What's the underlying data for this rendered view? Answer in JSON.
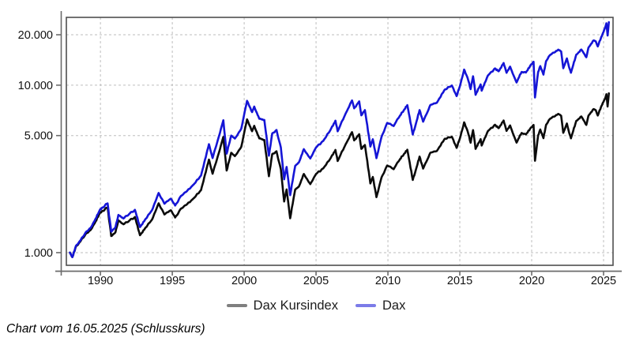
{
  "page": {
    "background": "#ffffff"
  },
  "caption": {
    "text": "Chart vom 16.05.2025 (Schlusskurs)"
  },
  "chart_data": {
    "type": "line",
    "title": "",
    "xlabel": "",
    "ylabel": "",
    "grid": true,
    "grid_color": "#bdbdbd",
    "border_color": "#4f4f4f",
    "axis_color": "#6b6b6b",
    "tick_text_color": "#111111",
    "legend_position": "bottom-center",
    "x_axis": {
      "scale": "linear",
      "range": [
        1987.63,
        2025.66
      ],
      "ticks": [
        {
          "v": 1990,
          "label": "1990"
        },
        {
          "v": 1995,
          "label": "1995"
        },
        {
          "v": 2000,
          "label": "2000"
        },
        {
          "v": 2005,
          "label": "2005"
        },
        {
          "v": 2010,
          "label": "2010"
        },
        {
          "v": 2015,
          "label": "2015"
        },
        {
          "v": 2020,
          "label": "2020"
        },
        {
          "v": 2025,
          "label": "2025"
        }
      ]
    },
    "y_axis": {
      "scale": "log",
      "range": [
        840,
        25400
      ],
      "ticks": [
        {
          "v": 1000,
          "label": "1.000"
        },
        {
          "v": 5000,
          "label": "5.000"
        },
        {
          "v": 10000,
          "label": "10.000"
        },
        {
          "v": 20000,
          "label": "20.000"
        }
      ]
    },
    "series": [
      {
        "name": "Dax Kursindex",
        "color": "#0b0b0b",
        "legend_color": "#7f7f7f",
        "points": [
          [
            1987.88,
            1000
          ],
          [
            1988.05,
            940
          ],
          [
            1988.3,
            1090
          ],
          [
            1988.6,
            1165
          ],
          [
            1989.0,
            1300
          ],
          [
            1989.3,
            1360
          ],
          [
            1989.6,
            1495
          ],
          [
            1989.95,
            1715
          ],
          [
            1990.1,
            1765
          ],
          [
            1990.5,
            1860
          ],
          [
            1990.75,
            1255
          ],
          [
            1991.05,
            1325
          ],
          [
            1991.25,
            1560
          ],
          [
            1991.6,
            1475
          ],
          [
            1992.0,
            1550
          ],
          [
            1992.4,
            1630
          ],
          [
            1992.75,
            1270
          ],
          [
            1993.1,
            1395
          ],
          [
            1993.6,
            1580
          ],
          [
            1994.05,
            1970
          ],
          [
            1994.45,
            1690
          ],
          [
            1994.9,
            1790
          ],
          [
            1995.2,
            1620
          ],
          [
            1995.6,
            1830
          ],
          [
            1996.0,
            1935
          ],
          [
            1996.5,
            2115
          ],
          [
            1997.0,
            2365
          ],
          [
            1997.55,
            3595
          ],
          [
            1997.8,
            2960
          ],
          [
            1998.1,
            3590
          ],
          [
            1998.55,
            4910
          ],
          [
            1998.78,
            3090
          ],
          [
            1999.1,
            3945
          ],
          [
            1999.35,
            3770
          ],
          [
            1999.8,
            4285
          ],
          [
            2000.2,
            6245
          ],
          [
            2000.55,
            5310
          ],
          [
            2000.7,
            5720
          ],
          [
            2001.05,
            4810
          ],
          [
            2001.4,
            4705
          ],
          [
            2001.72,
            2860
          ],
          [
            2001.95,
            3875
          ],
          [
            2002.25,
            4030
          ],
          [
            2002.55,
            3150
          ],
          [
            2002.78,
            2020
          ],
          [
            2002.95,
            2385
          ],
          [
            2003.2,
            1605
          ],
          [
            2003.55,
            2385
          ],
          [
            2003.8,
            2475
          ],
          [
            2004.15,
            2950
          ],
          [
            2004.6,
            2565
          ],
          [
            2005.0,
            2950
          ],
          [
            2005.5,
            3185
          ],
          [
            2006.0,
            3650
          ],
          [
            2006.35,
            4105
          ],
          [
            2006.5,
            3525
          ],
          [
            2007.0,
            4330
          ],
          [
            2007.5,
            5240
          ],
          [
            2007.65,
            4680
          ],
          [
            2008.0,
            5095
          ],
          [
            2008.15,
            4160
          ],
          [
            2008.4,
            4395
          ],
          [
            2008.78,
            2590
          ],
          [
            2008.95,
            2830
          ],
          [
            2009.2,
            2145
          ],
          [
            2009.55,
            2805
          ],
          [
            2009.95,
            3315
          ],
          [
            2010.4,
            3150
          ],
          [
            2010.85,
            3625
          ],
          [
            2011.1,
            3865
          ],
          [
            2011.35,
            4115
          ],
          [
            2011.73,
            2715
          ],
          [
            2011.95,
            3135
          ],
          [
            2012.2,
            3745
          ],
          [
            2012.45,
            3175
          ],
          [
            2012.95,
            3945
          ],
          [
            2013.4,
            4040
          ],
          [
            2013.95,
            4780
          ],
          [
            2014.45,
            4920
          ],
          [
            2014.78,
            4220
          ],
          [
            2015.0,
            4780
          ],
          [
            2015.3,
            6000
          ],
          [
            2015.55,
            5295
          ],
          [
            2015.75,
            4535
          ],
          [
            2015.92,
            5390
          ],
          [
            2016.1,
            4160
          ],
          [
            2016.45,
            4760
          ],
          [
            2016.52,
            4360
          ],
          [
            2016.95,
            5310
          ],
          [
            2017.45,
            5800
          ],
          [
            2017.7,
            5540
          ],
          [
            2018.05,
            6150
          ],
          [
            2018.25,
            5330
          ],
          [
            2018.5,
            5745
          ],
          [
            2018.95,
            4540
          ],
          [
            2019.3,
            5180
          ],
          [
            2019.6,
            5075
          ],
          [
            2019.95,
            5580
          ],
          [
            2020.13,
            5785
          ],
          [
            2020.23,
            3535
          ],
          [
            2020.45,
            5020
          ],
          [
            2020.6,
            5435
          ],
          [
            2020.82,
            4825
          ],
          [
            2021.0,
            5790
          ],
          [
            2021.3,
            6320
          ],
          [
            2021.6,
            6510
          ],
          [
            2021.85,
            6740
          ],
          [
            2022.05,
            6565
          ],
          [
            2022.2,
            5195
          ],
          [
            2022.45,
            5905
          ],
          [
            2022.6,
            5225
          ],
          [
            2022.73,
            4815
          ],
          [
            2023.1,
            6115
          ],
          [
            2023.45,
            6505
          ],
          [
            2023.8,
            5790
          ],
          [
            2023.95,
            6580
          ],
          [
            2024.3,
            7195
          ],
          [
            2024.45,
            7100
          ],
          [
            2024.6,
            6590
          ],
          [
            2024.95,
            7845
          ],
          [
            2025.1,
            8270
          ],
          [
            2025.2,
            8835
          ],
          [
            2025.28,
            7455
          ],
          [
            2025.37,
            8940
          ]
        ]
      },
      {
        "name": "Dax",
        "color": "#1515d6",
        "legend_color": "#7b7be8",
        "points": [
          [
            1987.88,
            1000
          ],
          [
            1988.05,
            940
          ],
          [
            1988.3,
            1100
          ],
          [
            1988.6,
            1180
          ],
          [
            1989.0,
            1330
          ],
          [
            1989.3,
            1400
          ],
          [
            1989.6,
            1550
          ],
          [
            1989.95,
            1790
          ],
          [
            1990.1,
            1850
          ],
          [
            1990.5,
            1968
          ],
          [
            1990.75,
            1335
          ],
          [
            1991.05,
            1420
          ],
          [
            1991.25,
            1680
          ],
          [
            1991.6,
            1600
          ],
          [
            1992.0,
            1700
          ],
          [
            1992.4,
            1800
          ],
          [
            1992.75,
            1420
          ],
          [
            1993.1,
            1570
          ],
          [
            1993.6,
            1800
          ],
          [
            1994.05,
            2270
          ],
          [
            1994.45,
            1960
          ],
          [
            1994.9,
            2100
          ],
          [
            1995.2,
            1910
          ],
          [
            1995.6,
            2180
          ],
          [
            1996.0,
            2320
          ],
          [
            1996.5,
            2560
          ],
          [
            1997.0,
            2890
          ],
          [
            1997.55,
            4440
          ],
          [
            1997.8,
            3670
          ],
          [
            1998.1,
            4480
          ],
          [
            1998.55,
            6170
          ],
          [
            1998.78,
            3900
          ],
          [
            1999.1,
            5000
          ],
          [
            1999.35,
            4800
          ],
          [
            1999.8,
            5500
          ],
          [
            2000.2,
            8065
          ],
          [
            2000.55,
            6900
          ],
          [
            2000.7,
            7450
          ],
          [
            2001.05,
            6300
          ],
          [
            2001.4,
            6200
          ],
          [
            2001.72,
            3790
          ],
          [
            2001.95,
            5150
          ],
          [
            2002.25,
            5400
          ],
          [
            2002.55,
            4250
          ],
          [
            2002.78,
            2740
          ],
          [
            2002.95,
            3250
          ],
          [
            2003.2,
            2203
          ],
          [
            2003.55,
            3300
          ],
          [
            2003.8,
            3450
          ],
          [
            2004.15,
            4150
          ],
          [
            2004.6,
            3650
          ],
          [
            2005.0,
            4250
          ],
          [
            2005.5,
            4650
          ],
          [
            2006.0,
            5400
          ],
          [
            2006.35,
            6140
          ],
          [
            2006.5,
            5300
          ],
          [
            2007.0,
            6600
          ],
          [
            2007.5,
            8106
          ],
          [
            2007.65,
            7270
          ],
          [
            2008.0,
            8000
          ],
          [
            2008.15,
            6600
          ],
          [
            2008.4,
            7100
          ],
          [
            2008.78,
            4300
          ],
          [
            2008.95,
            4750
          ],
          [
            2009.2,
            3666
          ],
          [
            2009.55,
            4900
          ],
          [
            2009.95,
            5950
          ],
          [
            2010.4,
            5700
          ],
          [
            2010.85,
            6600
          ],
          [
            2011.1,
            7080
          ],
          [
            2011.35,
            7600
          ],
          [
            2011.73,
            5072
          ],
          [
            2011.95,
            5900
          ],
          [
            2012.2,
            7100
          ],
          [
            2012.45,
            6050
          ],
          [
            2012.95,
            7600
          ],
          [
            2013.4,
            7850
          ],
          [
            2013.95,
            9400
          ],
          [
            2014.45,
            9950
          ],
          [
            2014.78,
            8600
          ],
          [
            2015.0,
            9800
          ],
          [
            2015.3,
            12390
          ],
          [
            2015.55,
            11000
          ],
          [
            2015.75,
            9470
          ],
          [
            2015.92,
            11300
          ],
          [
            2016.1,
            8753
          ],
          [
            2016.45,
            10100
          ],
          [
            2016.52,
            9270
          ],
          [
            2016.95,
            11400
          ],
          [
            2017.45,
            12600
          ],
          [
            2017.7,
            12100
          ],
          [
            2018.05,
            13560
          ],
          [
            2018.25,
            11850
          ],
          [
            2018.5,
            12900
          ],
          [
            2018.95,
            10380
          ],
          [
            2019.3,
            12000
          ],
          [
            2019.6,
            11900
          ],
          [
            2019.95,
            13250
          ],
          [
            2020.13,
            13795
          ],
          [
            2020.23,
            8442
          ],
          [
            2020.45,
            12000
          ],
          [
            2020.6,
            13000
          ],
          [
            2020.82,
            11560
          ],
          [
            2021.0,
            13900
          ],
          [
            2021.3,
            15200
          ],
          [
            2021.6,
            15700
          ],
          [
            2021.85,
            16290
          ],
          [
            2022.05,
            15900
          ],
          [
            2022.2,
            12630
          ],
          [
            2022.45,
            14450
          ],
          [
            2022.6,
            12830
          ],
          [
            2022.73,
            11860
          ],
          [
            2023.1,
            15200
          ],
          [
            2023.45,
            16330
          ],
          [
            2023.8,
            14680
          ],
          [
            2023.95,
            16750
          ],
          [
            2024.3,
            18500
          ],
          [
            2024.45,
            18300
          ],
          [
            2024.6,
            17030
          ],
          [
            2024.95,
            20400
          ],
          [
            2025.1,
            21900
          ],
          [
            2025.2,
            23420
          ],
          [
            2025.28,
            19790
          ],
          [
            2025.37,
            23767
          ]
        ]
      }
    ]
  }
}
